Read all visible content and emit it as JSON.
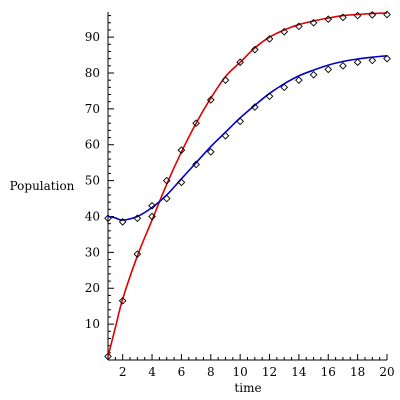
{
  "chart_data": {
    "type": "line",
    "xlabel": "time",
    "ylabel": "Population",
    "xlim": [
      1,
      20
    ],
    "ylim": [
      0,
      97
    ],
    "x_ticks": [
      2,
      4,
      6,
      8,
      10,
      12,
      14,
      16,
      18,
      20
    ],
    "y_ticks": [
      10,
      20,
      30,
      40,
      50,
      60,
      70,
      80,
      90
    ],
    "grid": false,
    "legend": "none",
    "colors": {
      "red": "#e00000",
      "blue": "#0000cc",
      "marker": "#000000",
      "axis": "#000000"
    },
    "series": [
      {
        "color": "red",
        "curve": {
          "x": [
            1,
            1.5,
            2,
            3,
            4,
            5,
            6,
            7,
            8,
            9,
            10,
            11,
            12,
            13,
            14,
            15,
            16,
            17,
            18,
            19,
            20
          ],
          "y": [
            1,
            9,
            17,
            29,
            39,
            49,
            58,
            66,
            73,
            79,
            83,
            87,
            90,
            92,
            93.5,
            94.5,
            95.3,
            96,
            96.3,
            96.6,
            96.7
          ]
        },
        "points": {
          "x": [
            1,
            2,
            3,
            4,
            5,
            6,
            7,
            8,
            9,
            10,
            11,
            12,
            13,
            14,
            15,
            16,
            17,
            18,
            19,
            20
          ],
          "y": [
            1,
            16.5,
            29.5,
            40,
            50,
            58.5,
            66,
            72.5,
            78,
            83,
            86.5,
            89.5,
            91.5,
            93,
            94,
            95,
            95.5,
            96,
            96.2,
            96.3
          ]
        }
      },
      {
        "color": "blue",
        "curve": {
          "x": [
            1,
            1.5,
            2,
            3,
            4,
            5,
            6,
            7,
            8,
            9,
            10,
            11,
            12,
            13,
            14,
            15,
            16,
            17,
            18,
            19,
            20
          ],
          "y": [
            40,
            39.6,
            39,
            40,
            42.5,
            46,
            50.5,
            55,
            59.5,
            63.5,
            67.5,
            71,
            74.3,
            77,
            79.2,
            80.8,
            82.2,
            83.2,
            83.9,
            84.4,
            84.8
          ]
        },
        "points": {
          "x": [
            1,
            2,
            3,
            4,
            5,
            6,
            7,
            8,
            9,
            10,
            11,
            12,
            13,
            14,
            15,
            16,
            17,
            18,
            19,
            20
          ],
          "y": [
            39.5,
            38.5,
            39.5,
            43,
            45,
            49.5,
            54.5,
            58,
            62.5,
            66.5,
            70.5,
            73.5,
            76,
            78,
            79.5,
            81,
            82,
            83,
            83.5,
            84
          ]
        }
      }
    ]
  }
}
